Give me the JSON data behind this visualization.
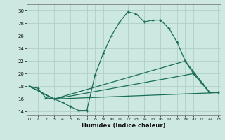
{
  "xlabel": "Humidex (Indice chaleur)",
  "bg_color": "#cce8e0",
  "grid_color": "#b0d0c8",
  "line_color": "#1a6e5a",
  "line1_x": [
    0,
    1,
    2,
    3,
    4,
    5,
    6,
    7,
    8,
    9,
    10,
    11,
    12,
    13,
    14,
    15,
    16,
    17,
    18,
    19,
    20,
    21,
    22,
    23
  ],
  "line1_y": [
    18.0,
    17.7,
    16.2,
    16.0,
    15.5,
    14.8,
    14.2,
    14.2,
    19.8,
    23.2,
    26.0,
    28.2,
    29.8,
    29.5,
    28.2,
    28.5,
    28.5,
    27.2,
    25.0,
    22.0,
    20.0,
    18.5,
    17.0,
    17.0
  ],
  "line2_x": [
    0,
    3,
    19,
    22,
    23
  ],
  "line2_y": [
    18.0,
    16.0,
    22.0,
    17.0,
    17.0
  ],
  "line3_x": [
    0,
    3,
    20,
    22,
    23
  ],
  "line3_y": [
    18.0,
    16.0,
    20.0,
    17.0,
    17.0
  ],
  "line4_x": [
    0,
    3,
    23
  ],
  "line4_y": [
    18.0,
    16.0,
    17.0
  ],
  "xlim": [
    -0.3,
    23.3
  ],
  "ylim": [
    13.5,
    31.0
  ],
  "yticks": [
    14,
    16,
    18,
    20,
    22,
    24,
    26,
    28,
    30
  ],
  "xticks": [
    0,
    1,
    2,
    3,
    4,
    5,
    6,
    7,
    8,
    9,
    10,
    11,
    12,
    13,
    14,
    15,
    16,
    17,
    18,
    19,
    20,
    21,
    22,
    23
  ]
}
